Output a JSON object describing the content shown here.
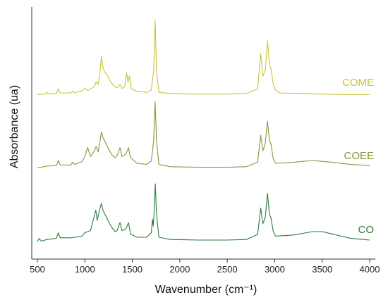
{
  "chart_data": {
    "type": "line",
    "title": "",
    "xlabel": "Wavenumber (cm⁻¹)",
    "ylabel": "Absorbance (ua)",
    "xlim": [
      500,
      4000
    ],
    "xticks": [
      500,
      1000,
      1500,
      2000,
      2500,
      3000,
      3500,
      4000
    ],
    "y_ticks_shown": false,
    "grid": false,
    "legend": "none (series labelled inline at right end of each trace)",
    "stacked_offset": true,
    "series": [
      {
        "name": "COME",
        "color": "#c9c23a",
        "offset": 2,
        "points": [
          [
            500,
            0.02
          ],
          [
            580,
            0.03
          ],
          [
            600,
            0.06
          ],
          [
            620,
            0.03
          ],
          [
            700,
            0.04
          ],
          [
            720,
            0.12
          ],
          [
            740,
            0.05
          ],
          [
            850,
            0.05
          ],
          [
            870,
            0.08
          ],
          [
            890,
            0.05
          ],
          [
            970,
            0.09
          ],
          [
            1000,
            0.13
          ],
          [
            1030,
            0.09
          ],
          [
            1100,
            0.16
          ],
          [
            1120,
            0.25
          ],
          [
            1140,
            0.2
          ],
          [
            1160,
            0.42
          ],
          [
            1175,
            0.7
          ],
          [
            1190,
            0.5
          ],
          [
            1210,
            0.42
          ],
          [
            1240,
            0.36
          ],
          [
            1260,
            0.28
          ],
          [
            1300,
            0.18
          ],
          [
            1340,
            0.14
          ],
          [
            1370,
            0.2
          ],
          [
            1390,
            0.13
          ],
          [
            1420,
            0.16
          ],
          [
            1440,
            0.4
          ],
          [
            1455,
            0.24
          ],
          [
            1470,
            0.35
          ],
          [
            1490,
            0.12
          ],
          [
            1550,
            0.08
          ],
          [
            1650,
            0.06
          ],
          [
            1700,
            0.1
          ],
          [
            1725,
            0.45
          ],
          [
            1740,
            1.35
          ],
          [
            1755,
            0.45
          ],
          [
            1780,
            0.06
          ],
          [
            1900,
            0.04
          ],
          [
            2200,
            0.03
          ],
          [
            2500,
            0.03
          ],
          [
            2700,
            0.04
          ],
          [
            2820,
            0.12
          ],
          [
            2853,
            0.75
          ],
          [
            2875,
            0.35
          ],
          [
            2900,
            0.45
          ],
          [
            2924,
            0.98
          ],
          [
            2945,
            0.55
          ],
          [
            2960,
            0.48
          ],
          [
            2985,
            0.2
          ],
          [
            3010,
            0.1
          ],
          [
            3050,
            0.05
          ],
          [
            3300,
            0.04
          ],
          [
            3500,
            0.03
          ],
          [
            3700,
            0.02
          ],
          [
            4000,
            0.02
          ]
        ]
      },
      {
        "name": "COEE",
        "color": "#7f9a3a",
        "offset": 1,
        "points": [
          [
            500,
            0.02
          ],
          [
            600,
            0.05
          ],
          [
            700,
            0.06
          ],
          [
            720,
            0.15
          ],
          [
            740,
            0.07
          ],
          [
            850,
            0.07
          ],
          [
            870,
            0.12
          ],
          [
            890,
            0.08
          ],
          [
            970,
            0.13
          ],
          [
            1000,
            0.22
          ],
          [
            1030,
            0.38
          ],
          [
            1060,
            0.22
          ],
          [
            1100,
            0.32
          ],
          [
            1120,
            0.4
          ],
          [
            1140,
            0.3
          ],
          [
            1160,
            0.5
          ],
          [
            1175,
            0.66
          ],
          [
            1190,
            0.56
          ],
          [
            1220,
            0.46
          ],
          [
            1250,
            0.36
          ],
          [
            1280,
            0.26
          ],
          [
            1320,
            0.2
          ],
          [
            1340,
            0.24
          ],
          [
            1370,
            0.38
          ],
          [
            1390,
            0.22
          ],
          [
            1430,
            0.26
          ],
          [
            1460,
            0.38
          ],
          [
            1480,
            0.2
          ],
          [
            1550,
            0.1
          ],
          [
            1650,
            0.08
          ],
          [
            1700,
            0.14
          ],
          [
            1725,
            0.5
          ],
          [
            1740,
            1.2
          ],
          [
            1755,
            0.5
          ],
          [
            1780,
            0.08
          ],
          [
            1900,
            0.04
          ],
          [
            2200,
            0.03
          ],
          [
            2500,
            0.03
          ],
          [
            2700,
            0.04
          ],
          [
            2820,
            0.12
          ],
          [
            2853,
            0.6
          ],
          [
            2875,
            0.32
          ],
          [
            2900,
            0.45
          ],
          [
            2924,
            0.85
          ],
          [
            2945,
            0.5
          ],
          [
            2960,
            0.45
          ],
          [
            2985,
            0.18
          ],
          [
            3010,
            0.1
          ],
          [
            3200,
            0.12
          ],
          [
            3400,
            0.15
          ],
          [
            3600,
            0.12
          ],
          [
            3800,
            0.08
          ],
          [
            4000,
            0.06
          ]
        ]
      },
      {
        "name": "CO",
        "color": "#2d7a3e",
        "offset": 0,
        "points": [
          [
            500,
            0.02
          ],
          [
            520,
            0.08
          ],
          [
            540,
            0.03
          ],
          [
            600,
            0.06
          ],
          [
            700,
            0.08
          ],
          [
            720,
            0.18
          ],
          [
            740,
            0.09
          ],
          [
            850,
            0.09
          ],
          [
            900,
            0.1
          ],
          [
            970,
            0.12
          ],
          [
            1000,
            0.18
          ],
          [
            1060,
            0.22
          ],
          [
            1100,
            0.48
          ],
          [
            1115,
            0.58
          ],
          [
            1130,
            0.4
          ],
          [
            1160,
            0.62
          ],
          [
            1175,
            0.7
          ],
          [
            1190,
            0.58
          ],
          [
            1220,
            0.48
          ],
          [
            1250,
            0.38
          ],
          [
            1280,
            0.28
          ],
          [
            1320,
            0.2
          ],
          [
            1340,
            0.22
          ],
          [
            1370,
            0.36
          ],
          [
            1390,
            0.22
          ],
          [
            1430,
            0.24
          ],
          [
            1460,
            0.36
          ],
          [
            1480,
            0.16
          ],
          [
            1550,
            0.1
          ],
          [
            1650,
            0.1
          ],
          [
            1700,
            0.18
          ],
          [
            1712,
            0.42
          ],
          [
            1720,
            0.3
          ],
          [
            1730,
            0.55
          ],
          [
            1742,
            1.05
          ],
          [
            1755,
            0.5
          ],
          [
            1780,
            0.1
          ],
          [
            1900,
            0.06
          ],
          [
            2200,
            0.05
          ],
          [
            2500,
            0.05
          ],
          [
            2700,
            0.06
          ],
          [
            2820,
            0.15
          ],
          [
            2853,
            0.62
          ],
          [
            2875,
            0.34
          ],
          [
            2900,
            0.45
          ],
          [
            2924,
            0.88
          ],
          [
            2945,
            0.5
          ],
          [
            2960,
            0.45
          ],
          [
            2985,
            0.2
          ],
          [
            3010,
            0.12
          ],
          [
            3200,
            0.14
          ],
          [
            3400,
            0.2
          ],
          [
            3500,
            0.2
          ],
          [
            3600,
            0.16
          ],
          [
            3800,
            0.08
          ],
          [
            4000,
            0.05
          ]
        ]
      }
    ]
  }
}
